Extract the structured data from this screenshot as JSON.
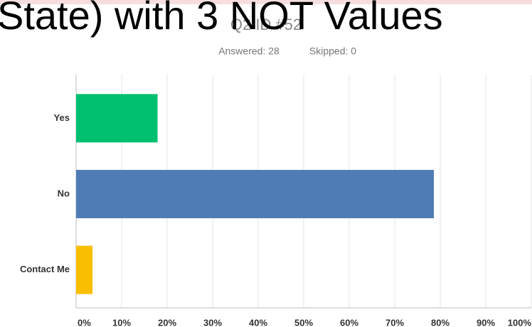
{
  "slide": {
    "title": "State) with 3 NOT Values"
  },
  "chart_data": {
    "type": "barh",
    "title": "Q2 ID #52",
    "answered": "Answered: 28",
    "skipped": "Skipped: 0",
    "categories": [
      "Yes",
      "No",
      "Contact Me"
    ],
    "values": [
      17.9,
      78.6,
      3.6
    ],
    "colors": [
      "#00bf6f",
      "#507cb6",
      "#f9be00"
    ],
    "xlim": [
      0,
      100
    ],
    "xticks": [
      {
        "value": 0,
        "label": "0%"
      },
      {
        "value": 10,
        "label": "10%"
      },
      {
        "value": 20,
        "label": "20%"
      },
      {
        "value": 30,
        "label": "30%"
      },
      {
        "value": 40,
        "label": "40%"
      },
      {
        "value": 50,
        "label": "50%"
      },
      {
        "value": 60,
        "label": "60%"
      },
      {
        "value": 70,
        "label": "70%"
      },
      {
        "value": 80,
        "label": "80%"
      },
      {
        "value": 90,
        "label": "90%"
      },
      {
        "value": 100,
        "label": "100%"
      }
    ],
    "grid": true
  }
}
